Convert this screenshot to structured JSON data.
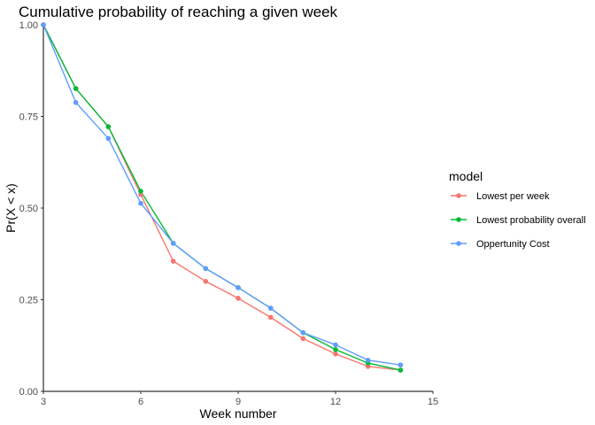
{
  "chart_data": {
    "type": "line",
    "title": "Cumulative probability of reaching a given week",
    "xlabel": "Week number",
    "ylabel": "Pr(X < x)",
    "xlim": [
      3,
      15
    ],
    "ylim": [
      0,
      1
    ],
    "x_ticks": [
      3,
      6,
      9,
      12,
      15
    ],
    "x_tick_labels": [
      "3",
      "6",
      "9",
      "12",
      "15"
    ],
    "y_ticks": [
      0,
      0.25,
      0.5,
      0.75,
      1
    ],
    "y_tick_labels": [
      "0.00",
      "0.25",
      "0.50",
      "0.75",
      "1.00"
    ],
    "grid": false,
    "legend": {
      "title": "model",
      "placement": "right"
    },
    "series": [
      {
        "name": "Lowest per week",
        "color": "#F8766D",
        "x": [
          3,
          4,
          5,
          6,
          7,
          8,
          9,
          10,
          11,
          12,
          13,
          14
        ],
        "y": [
          1.0,
          0.826,
          0.722,
          0.537,
          0.355,
          0.3,
          0.254,
          0.202,
          0.144,
          0.102,
          0.068,
          0.058
        ]
      },
      {
        "name": "Lowest probability overall",
        "color": "#00BA38",
        "x": [
          3,
          4,
          5,
          6,
          7,
          8,
          9,
          10,
          11,
          12,
          13,
          14
        ],
        "y": [
          1.0,
          0.826,
          0.722,
          0.546,
          0.404,
          0.335,
          0.283,
          0.227,
          0.16,
          0.114,
          0.077,
          0.058
        ]
      },
      {
        "name": "Oppertunity Cost",
        "color": "#619CFF",
        "x": [
          3,
          4,
          5,
          6,
          7,
          8,
          9,
          10,
          11,
          12,
          13,
          14
        ],
        "y": [
          1.0,
          0.788,
          0.69,
          0.513,
          0.404,
          0.335,
          0.283,
          0.227,
          0.16,
          0.127,
          0.085,
          0.072
        ]
      }
    ]
  }
}
